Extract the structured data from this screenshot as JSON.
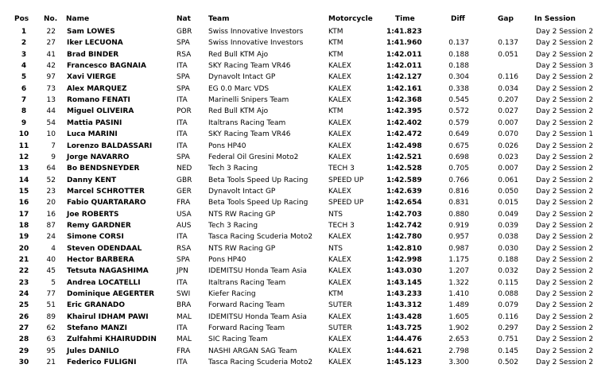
{
  "header": {
    "pos": "Pos",
    "no": "No.",
    "name": "Name",
    "nat": "Nat",
    "team": "Team",
    "motorcycle": "Motorcycle",
    "time": "Time",
    "diff": "Diff",
    "gap": "Gap",
    "session": "In Session"
  },
  "table": {
    "rows": [
      {
        "pos": 1,
        "no": 22,
        "name": "Sam LOWES",
        "nat": "GBR",
        "team": "Swiss Innovative Investors",
        "motorcycle": "KTM",
        "time": "1:41.823",
        "session": "Day 2 Session 2"
      },
      {
        "pos": 2,
        "no": 27,
        "name": "Iker LECUONA",
        "nat": "SPA",
        "team": "Swiss Innovative Investors",
        "motorcycle": "KTM",
        "time": "1:41.960",
        "diff": "0.137",
        "gap": "0.137",
        "session": "Day 2 Session 2"
      },
      {
        "pos": 3,
        "no": 41,
        "name": "Brad BINDER",
        "nat": "RSA",
        "team": "Red Bull KTM Ajo",
        "motorcycle": "KTM",
        "time": "1:42.011",
        "diff": "0.188",
        "gap": "0.051",
        "session": "Day 2 Session 2"
      },
      {
        "pos": 4,
        "no": 42,
        "name": "Francesco BAGNAIA",
        "nat": "ITA",
        "team": "SKY Racing Team VR46",
        "motorcycle": "KALEX",
        "time": "1:42.011",
        "diff": "0.188",
        "session": "Day 2 Session 3"
      },
      {
        "pos": 5,
        "no": 97,
        "name": "Xavi VIERGE",
        "nat": "SPA",
        "team": "Dynavolt Intact GP",
        "motorcycle": "KALEX",
        "time": "1:42.127",
        "diff": "0.304",
        "gap": "0.116",
        "session": "Day 2 Session 2"
      },
      {
        "pos": 6,
        "no": 73,
        "name": "Alex MARQUEZ",
        "nat": "SPA",
        "team": "EG 0.0 Marc VDS",
        "motorcycle": "KALEX",
        "time": "1:42.161",
        "diff": "0.338",
        "gap": "0.034",
        "session": "Day 2 Session 2"
      },
      {
        "pos": 7,
        "no": 13,
        "name": "Romano FENATI",
        "nat": "ITA",
        "team": "Marinelli Snipers Team",
        "motorcycle": "KALEX",
        "time": "1:42.368",
        "diff": "0.545",
        "gap": "0.207",
        "session": "Day 2 Session 2"
      },
      {
        "pos": 8,
        "no": 44,
        "name": "Miguel OLIVEIRA",
        "nat": "POR",
        "team": "Red Bull KTM Ajo",
        "motorcycle": "KTM",
        "time": "1:42.395",
        "diff": "0.572",
        "gap": "0.027",
        "session": "Day 2 Session 2"
      },
      {
        "pos": 9,
        "no": 54,
        "name": "Mattia PASINI",
        "nat": "ITA",
        "team": "Italtrans Racing Team",
        "motorcycle": "KALEX",
        "time": "1:42.402",
        "diff": "0.579",
        "gap": "0.007",
        "session": "Day 2 Session 2"
      },
      {
        "pos": 10,
        "no": 10,
        "name": "Luca MARINI",
        "nat": "ITA",
        "team": "SKY Racing Team VR46",
        "motorcycle": "KALEX",
        "time": "1:42.472",
        "diff": "0.649",
        "gap": "0.070",
        "session": "Day 2 Session 1"
      },
      {
        "pos": 11,
        "no": 7,
        "name": "Lorenzo BALDASSARI",
        "nat": "ITA",
        "team": "Pons HP40",
        "motorcycle": "KALEX",
        "time": "1:42.498",
        "diff": "0.675",
        "gap": "0.026",
        "session": "Day 2 Session 2"
      },
      {
        "pos": 12,
        "no": 9,
        "name": "Jorge NAVARRO",
        "nat": "SPA",
        "team": "Federal Oil Gresini Moto2",
        "motorcycle": "KALEX",
        "time": "1:42.521",
        "diff": "0.698",
        "gap": "0.023",
        "session": "Day 2 Session 2"
      },
      {
        "pos": 13,
        "no": 64,
        "name": "Bo BENDSNEYDER",
        "nat": "NED",
        "team": "Tech 3 Racing",
        "motorcycle": "TECH 3",
        "time": "1:42.528",
        "diff": "0.705",
        "gap": "0.007",
        "session": "Day 2 Session 2"
      },
      {
        "pos": 14,
        "no": 52,
        "name": "Danny KENT",
        "nat": "GBR",
        "team": "Beta Tools Speed Up Racing",
        "motorcycle": "SPEED UP",
        "time": "1:42.589",
        "diff": "0.766",
        "gap": "0.061",
        "session": "Day 2 Session 2"
      },
      {
        "pos": 15,
        "no": 23,
        "name": "Marcel SCHROTTER",
        "nat": "GER",
        "team": "Dynavolt Intact GP",
        "motorcycle": "KALEX",
        "time": "1:42.639",
        "diff": "0.816",
        "gap": "0.050",
        "session": "Day 2 Session 2"
      },
      {
        "pos": 16,
        "no": 20,
        "name": "Fabio QUARTARARO",
        "nat": "FRA",
        "team": "Beta Tools Speed Up Racing",
        "motorcycle": "SPEED UP",
        "time": "1:42.654",
        "diff": "0.831",
        "gap": "0.015",
        "session": "Day 2 Session 2"
      },
      {
        "pos": 17,
        "no": 16,
        "name": "Joe ROBERTS",
        "nat": "USA",
        "team": "NTS RW Racing GP",
        "motorcycle": "NTS",
        "time": "1:42.703",
        "diff": "0.880",
        "gap": "0.049",
        "session": "Day 2 Session 2"
      },
      {
        "pos": 18,
        "no": 87,
        "name": "Remy GARDNER",
        "nat": "AUS",
        "team": "Tech 3 Racing",
        "motorcycle": "TECH 3",
        "time": "1:42.742",
        "diff": "0.919",
        "gap": "0.039",
        "session": "Day 2 Session 2"
      },
      {
        "pos": 19,
        "no": 24,
        "name": "Simone CORSI",
        "nat": "ITA",
        "team": "Tasca Racing Scuderia Moto2",
        "motorcycle": "KALEX",
        "time": "1:42.780",
        "diff": "0.957",
        "gap": "0.038",
        "session": "Day 2 Session 2"
      },
      {
        "pos": 20,
        "no": 4,
        "name": "Steven ODENDAAL",
        "nat": "RSA",
        "team": "NTS RW Racing GP",
        "motorcycle": "NTS",
        "time": "1:42.810",
        "diff": "0.987",
        "gap": "0.030",
        "session": "Day 2 Session 2"
      },
      {
        "pos": 21,
        "no": 40,
        "name": "Hector BARBERA",
        "nat": "SPA",
        "team": "Pons HP40",
        "motorcycle": "KALEX",
        "time": "1:42.998",
        "diff": "1.175",
        "gap": "0.188",
        "session": "Day 2 Session 2"
      },
      {
        "pos": 22,
        "no": 45,
        "name": "Tetsuta NAGASHIMA",
        "nat": "JPN",
        "team": "IDEMITSU Honda Team Asia",
        "motorcycle": "KALEX",
        "time": "1:43.030",
        "diff": "1.207",
        "gap": "0.032",
        "session": "Day 2 Session 2"
      },
      {
        "pos": 23,
        "no": 5,
        "name": "Andrea LOCATELLI",
        "nat": "ITA",
        "team": "Italtrans Racing Team",
        "motorcycle": "KALEX",
        "time": "1:43.145",
        "diff": "1.322",
        "gap": "0.115",
        "session": "Day 2 Session 2"
      },
      {
        "pos": 24,
        "no": 77,
        "name": "Dominique AEGERTER",
        "nat": "SWI",
        "team": "Kiefer Racing",
        "motorcycle": "KTM",
        "time": "1:43.233",
        "diff": "1.410",
        "gap": "0.088",
        "session": "Day 2 Session 2"
      },
      {
        "pos": 25,
        "no": 51,
        "name": "Eric GRANADO",
        "nat": "BRA",
        "team": "Forward Racing Team",
        "motorcycle": "SUTER",
        "time": "1:43.312",
        "diff": "1.489",
        "gap": "0.079",
        "session": "Day 2 Session 2"
      },
      {
        "pos": 26,
        "no": 89,
        "name": "Khairul IDHAM PAWI",
        "nat": "MAL",
        "team": "IDEMITSU Honda Team Asia",
        "motorcycle": "KALEX",
        "time": "1:43.428",
        "diff": "1.605",
        "gap": "0.116",
        "session": "Day 2 Session 2"
      },
      {
        "pos": 27,
        "no": 62,
        "name": "Stefano MANZI",
        "nat": "ITA",
        "team": "Forward Racing Team",
        "motorcycle": "SUTER",
        "time": "1:43.725",
        "diff": "1.902",
        "gap": "0.297",
        "session": "Day 2 Session 2"
      },
      {
        "pos": 28,
        "no": 63,
        "name": "Zulfahmi KHAIRUDDIN",
        "nat": "MAL",
        "team": "SIC Racing Team",
        "motorcycle": "KALEX",
        "time": "1:44.476",
        "diff": "2.653",
        "gap": "0.751",
        "session": "Day 2 Session 2"
      },
      {
        "pos": 29,
        "no": 95,
        "name": "Jules DANILO",
        "nat": "FRA",
        "team": "NASHI ARGAN SAG Team",
        "motorcycle": "KALEX",
        "time": "1:44.621",
        "diff": "2.798",
        "gap": "0.145",
        "session": "Day 2 Session 2"
      },
      {
        "pos": 30,
        "no": 21,
        "name": "Federico FULIGNI",
        "nat": "ITA",
        "team": "Tasca Racing Scuderia Moto2",
        "motorcycle": "KALEX",
        "time": "1:45.123",
        "diff": "3.300",
        "gap": "0.502",
        "session": "Day 2 Session 2"
      }
    ]
  }
}
